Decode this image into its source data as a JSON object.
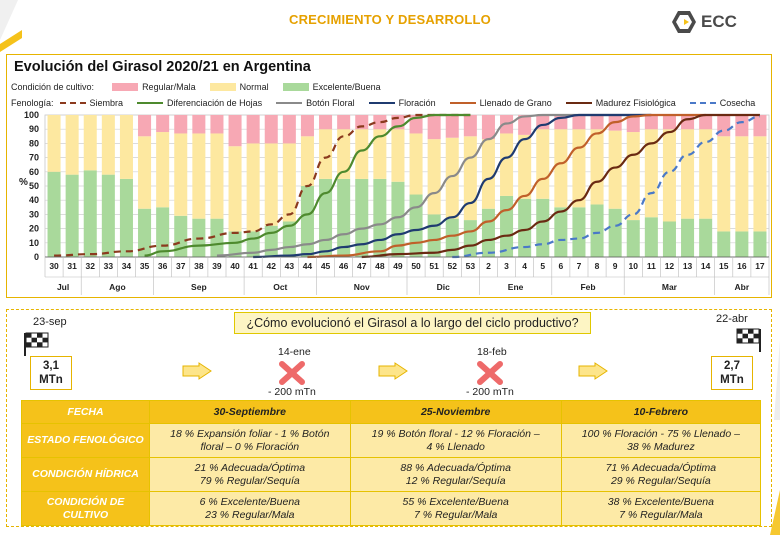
{
  "header": {
    "section_title": "CRECIMIENTO Y DESARROLLO",
    "logo_text": "ECC"
  },
  "colors": {
    "accent": "#f5c21a",
    "regular_mala": "#f7a8b4",
    "normal": "#fde8a0",
    "excelente_buena": "#a9d99b",
    "siembra": "#8b3a1e",
    "diferenciacion": "#4e8a2e",
    "boton_floral": "#8a8a8a",
    "floracion": "#1f3b70",
    "llenado": "#c0602a",
    "madurez": "#6a2a12",
    "cosecha": "#4a79c8"
  },
  "chart_data": {
    "type": "bar",
    "title": "Evolución del Girasol 2020/21 en Argentina",
    "legend_condition_label": "Condición de cultivo:",
    "legend_phenology_label": "Fenología:",
    "ylabel": "%",
    "ylim": [
      0,
      100
    ],
    "yticks": [
      0,
      10,
      20,
      30,
      40,
      50,
      60,
      70,
      80,
      90,
      100
    ],
    "grid": true,
    "weeks": [
      "30",
      "31",
      "32",
      "33",
      "34",
      "35",
      "36",
      "37",
      "38",
      "39",
      "40",
      "41",
      "42",
      "43",
      "44",
      "45",
      "46",
      "47",
      "48",
      "49",
      "50",
      "51",
      "52",
      "53",
      "2",
      "3",
      "4",
      "5",
      "6",
      "7",
      "8",
      "9",
      "10",
      "11",
      "12",
      "13",
      "14",
      "15",
      "16",
      "17"
    ],
    "months": [
      {
        "label": "Jul",
        "start": 0,
        "end": 2
      },
      {
        "label": "Ago",
        "start": 2,
        "end": 6
      },
      {
        "label": "Sep",
        "start": 6,
        "end": 11
      },
      {
        "label": "Oct",
        "start": 11,
        "end": 15
      },
      {
        "label": "Nov",
        "start": 15,
        "end": 20
      },
      {
        "label": "Dic",
        "start": 20,
        "end": 24
      },
      {
        "label": "Ene",
        "start": 24,
        "end": 28
      },
      {
        "label": "Feb",
        "start": 28,
        "end": 32
      },
      {
        "label": "Mar",
        "start": 32,
        "end": 37
      },
      {
        "label": "Abr",
        "start": 37,
        "end": 40
      }
    ],
    "condition_series": [
      {
        "name": "Regular/Mala",
        "values": [
          0,
          0,
          0,
          0,
          0,
          15,
          12,
          13,
          13,
          13,
          22,
          20,
          20,
          20,
          15,
          10,
          10,
          10,
          10,
          10,
          13,
          17,
          16,
          15,
          17,
          13,
          14,
          10,
          10,
          10,
          10,
          11,
          12,
          10,
          10,
          10,
          10,
          15,
          15,
          15
        ]
      },
      {
        "name": "Normal",
        "values": [
          40,
          42,
          39,
          42,
          45,
          51,
          53,
          58,
          60,
          60,
          60,
          62,
          58,
          55,
          35,
          35,
          35,
          35,
          35,
          37,
          43,
          53,
          57,
          59,
          49,
          44,
          45,
          49,
          55,
          55,
          53,
          55,
          62,
          62,
          65,
          63,
          63,
          67,
          67,
          67
        ]
      },
      {
        "name": "Excelente/Buena",
        "values": [
          60,
          58,
          61,
          58,
          55,
          34,
          35,
          29,
          27,
          27,
          18,
          18,
          22,
          25,
          50,
          55,
          55,
          55,
          55,
          53,
          44,
          30,
          27,
          26,
          34,
          43,
          41,
          41,
          35,
          35,
          37,
          34,
          26,
          28,
          25,
          27,
          27,
          18,
          18,
          18
        ]
      }
    ],
    "phenology_series": [
      {
        "name": "Siembra",
        "style": "dashed",
        "values": [
          [
            0,
            1
          ],
          [
            2,
            2
          ],
          [
            4,
            4
          ],
          [
            6,
            8
          ],
          [
            8,
            13
          ],
          [
            10,
            17
          ],
          [
            11,
            18
          ],
          [
            12,
            23
          ],
          [
            13,
            30
          ],
          [
            14,
            50
          ],
          [
            15,
            70
          ],
          [
            16,
            85
          ],
          [
            17,
            92
          ],
          [
            18,
            95
          ],
          [
            19,
            98
          ],
          [
            20,
            100
          ],
          [
            23,
            100
          ]
        ]
      },
      {
        "name": "Diferenciación de Hojas",
        "style": "solid",
        "values": [
          [
            5,
            1
          ],
          [
            6,
            4
          ],
          [
            8,
            8
          ],
          [
            10,
            10
          ],
          [
            11,
            13
          ],
          [
            12,
            17
          ],
          [
            13,
            22
          ],
          [
            14,
            30
          ],
          [
            15,
            45
          ],
          [
            16,
            60
          ],
          [
            17,
            75
          ],
          [
            18,
            85
          ],
          [
            19,
            92
          ],
          [
            20,
            98
          ],
          [
            21,
            100
          ],
          [
            23,
            100
          ]
        ]
      },
      {
        "name": "Botón Floral",
        "style": "solid",
        "values": [
          [
            9,
            1
          ],
          [
            11,
            3
          ],
          [
            12,
            5
          ],
          [
            13,
            7
          ],
          [
            14,
            9
          ],
          [
            15,
            12
          ],
          [
            16,
            16
          ],
          [
            17,
            20
          ],
          [
            18,
            23
          ],
          [
            19,
            28
          ],
          [
            20,
            35
          ],
          [
            21,
            45
          ],
          [
            22,
            57
          ],
          [
            23,
            70
          ],
          [
            24,
            83
          ],
          [
            25,
            94
          ],
          [
            26,
            99
          ],
          [
            27,
            100
          ],
          [
            33,
            100
          ]
        ]
      },
      {
        "name": "Floración",
        "style": "solid",
        "values": [
          [
            11,
            0
          ],
          [
            13,
            1
          ],
          [
            14,
            2
          ],
          [
            15,
            4
          ],
          [
            16,
            7
          ],
          [
            17,
            9
          ],
          [
            18,
            12
          ],
          [
            19,
            16
          ],
          [
            20,
            19
          ],
          [
            21,
            22
          ],
          [
            22,
            28
          ],
          [
            23,
            38
          ],
          [
            24,
            55
          ],
          [
            25,
            70
          ],
          [
            26,
            83
          ],
          [
            27,
            93
          ],
          [
            28,
            98
          ],
          [
            29,
            100
          ],
          [
            33,
            100
          ]
        ]
      },
      {
        "name": "Llenado de Grano",
        "style": "solid",
        "values": [
          [
            14,
            0
          ],
          [
            16,
            1
          ],
          [
            18,
            4
          ],
          [
            19,
            8
          ],
          [
            20,
            10
          ],
          [
            21,
            12
          ],
          [
            22,
            15
          ],
          [
            23,
            18
          ],
          [
            24,
            25
          ],
          [
            25,
            33
          ],
          [
            26,
            43
          ],
          [
            27,
            55
          ],
          [
            28,
            66
          ],
          [
            29,
            77
          ],
          [
            30,
            87
          ],
          [
            31,
            95
          ],
          [
            32,
            99
          ],
          [
            33,
            100
          ],
          [
            36,
            100
          ]
        ]
      },
      {
        "name": "Madurez Fisiológica",
        "style": "solid",
        "values": [
          [
            17,
            0
          ],
          [
            19,
            2
          ],
          [
            21,
            3
          ],
          [
            22,
            5
          ],
          [
            23,
            8
          ],
          [
            24,
            12
          ],
          [
            25,
            15
          ],
          [
            26,
            19
          ],
          [
            27,
            25
          ],
          [
            28,
            32
          ],
          [
            29,
            40
          ],
          [
            30,
            53
          ],
          [
            31,
            63
          ],
          [
            32,
            72
          ],
          [
            33,
            80
          ],
          [
            34,
            88
          ],
          [
            35,
            97
          ],
          [
            36,
            100
          ],
          [
            39,
            100
          ]
        ]
      },
      {
        "name": "Cosecha",
        "style": "dashed",
        "values": [
          [
            22,
            0
          ],
          [
            24,
            3
          ],
          [
            26,
            7
          ],
          [
            27,
            9
          ],
          [
            28,
            12
          ],
          [
            29,
            13
          ],
          [
            30,
            17
          ],
          [
            31,
            22
          ],
          [
            32,
            30
          ],
          [
            33,
            45
          ],
          [
            34,
            60
          ],
          [
            35,
            72
          ],
          [
            36,
            81
          ],
          [
            37,
            89
          ],
          [
            38,
            95
          ],
          [
            39,
            99
          ]
        ]
      }
    ]
  },
  "timeline": {
    "question": "¿Cómo evolucionó el Girasol a lo largo del ciclo productivo?",
    "start": {
      "date": "23-sep",
      "value": "3,1 MTn"
    },
    "end": {
      "date": "22-abr",
      "value": "2,7 MTn"
    },
    "cuts": [
      {
        "date": "14-ene",
        "delta": "- 200 mTn"
      },
      {
        "date": "18-feb",
        "delta": "- 200 mTn"
      }
    ]
  },
  "summary_table": {
    "header": {
      "label": "FECHA",
      "cols": [
        "30-Septiembre",
        "25-Noviembre",
        "10-Febrero"
      ]
    },
    "rows": [
      {
        "label": "ESTADO FENOLÓGICO",
        "cols": [
          [
            "18 % Expansión foliar - 1 % Botón",
            "floral – 0 % Floración"
          ],
          [
            "19 % Botón floral - 12 % Floración –",
            "4 % Llenado"
          ],
          [
            "100 % Floración - 75 % Llenado –",
            "38 % Madurez"
          ]
        ]
      },
      {
        "label": "CONDICIÓN HÍDRICA",
        "cols": [
          [
            "21 % Adecuada/Óptima",
            "79 % Regular/Sequía"
          ],
          [
            "88 % Adecuada/Óptima",
            "12 % Regular/Sequía"
          ],
          [
            "71 % Adecuada/Óptima",
            "29 % Regular/Sequía"
          ]
        ]
      },
      {
        "label": "CONDICIÓN DE CULTIVO",
        "cols": [
          [
            "6 % Excelente/Buena",
            "23 % Regular/Mala"
          ],
          [
            "55 % Excelente/Buena",
            "7 % Regular/Mala"
          ],
          [
            "38 % Excelente/Buena",
            "7 % Regular/Mala"
          ]
        ]
      }
    ]
  }
}
